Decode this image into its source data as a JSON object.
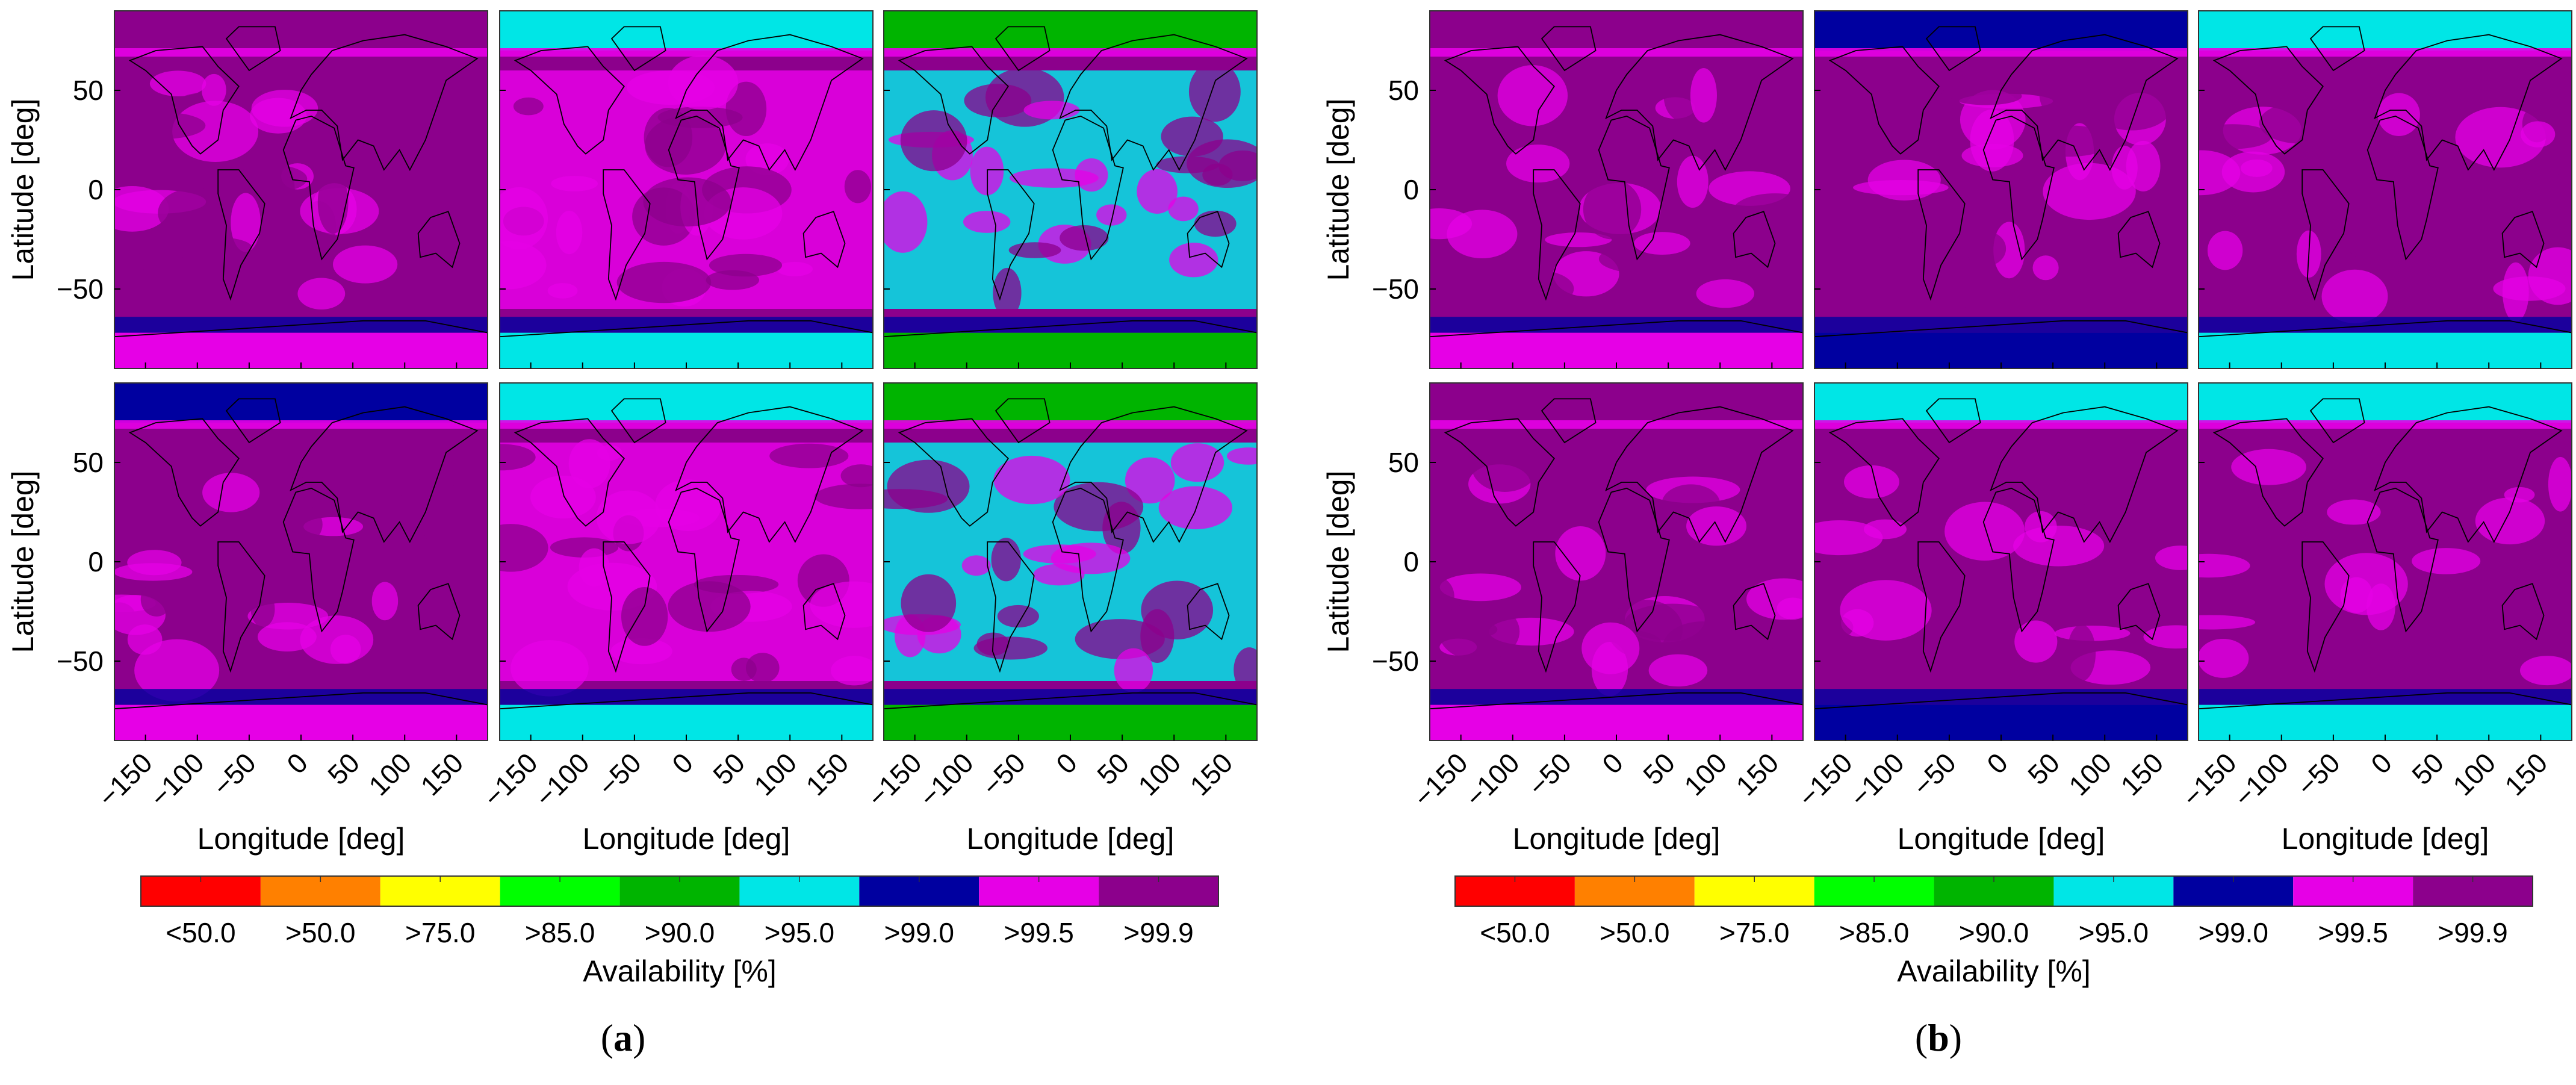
{
  "chart_data": {
    "type": "heatmap",
    "description_units": "Availability [%]",
    "x_axis": {
      "label": "Longitude [deg]",
      "range": [
        -180,
        180
      ],
      "ticks": [
        -150,
        -100,
        -50,
        0,
        50,
        100,
        150
      ],
      "tick_labels": [
        "−150",
        "−100",
        "−50",
        "0",
        "50",
        "100",
        "150"
      ]
    },
    "y_axis": {
      "label": "Latitude [deg]",
      "range": [
        -90,
        90
      ],
      "ticks": [
        50,
        0,
        -50
      ],
      "tick_labels": [
        "50",
        "0",
        "−50"
      ]
    },
    "colorbar": {
      "title": "Availability [%]",
      "levels": [
        {
          "label": "<50.0",
          "color": "#ff0000"
        },
        {
          "label": ">50.0",
          "color": "#ff8000"
        },
        {
          "label": ">75.0",
          "color": "#ffff00"
        },
        {
          "label": ">85.0",
          "color": "#00ff00"
        },
        {
          "label": ">90.0",
          "color": "#00b400"
        },
        {
          "label": ">95.0",
          "color": "#00e6e6"
        },
        {
          "label": ">99.0",
          "color": "#0000a0"
        },
        {
          "label": ">99.5",
          "color": "#e600e6"
        },
        {
          "label": ">99.9",
          "color": "#8c008c"
        }
      ]
    },
    "panels": [
      {
        "label": "(a)",
        "grid": [
          {
            "row": 0,
            "col": 0,
            "band_levels": {
              "north": ">99.9",
              "mid": ">99.9",
              "south": ">99.5"
            }
          },
          {
            "row": 0,
            "col": 1,
            "band_levels": {
              "north": ">95.0",
              "mid": ">99.5",
              "south": ">95.0"
            }
          },
          {
            "row": 0,
            "col": 2,
            "band_levels": {
              "north": ">90.0",
              "mid": ">95.0",
              "south": ">90.0"
            }
          },
          {
            "row": 1,
            "col": 0,
            "band_levels": {
              "north": ">99.0",
              "mid": ">99.9",
              "south": ">99.5"
            }
          },
          {
            "row": 1,
            "col": 1,
            "band_levels": {
              "north": ">95.0",
              "mid": ">99.5",
              "south": ">95.0"
            }
          },
          {
            "row": 1,
            "col": 2,
            "band_levels": {
              "north": ">90.0",
              "mid": ">95.0",
              "south": ">90.0"
            }
          }
        ]
      },
      {
        "label": "(b)",
        "grid": [
          {
            "row": 0,
            "col": 0,
            "band_levels": {
              "north": ">99.9",
              "mid": ">99.9",
              "south": ">99.5"
            }
          },
          {
            "row": 0,
            "col": 1,
            "band_levels": {
              "north": ">99.0",
              "mid": ">99.9",
              "south": ">99.0"
            }
          },
          {
            "row": 0,
            "col": 2,
            "band_levels": {
              "north": ">95.0",
              "mid": ">99.9",
              "south": ">95.0"
            }
          },
          {
            "row": 1,
            "col": 0,
            "band_levels": {
              "north": ">99.9",
              "mid": ">99.9",
              "south": ">99.5"
            }
          },
          {
            "row": 1,
            "col": 1,
            "band_levels": {
              "north": ">95.0",
              "mid": ">99.9",
              "south": ">99.0"
            }
          },
          {
            "row": 1,
            "col": 2,
            "band_levels": {
              "north": ">95.0",
              "mid": ">99.9",
              "south": ">95.0"
            }
          }
        ]
      }
    ]
  }
}
